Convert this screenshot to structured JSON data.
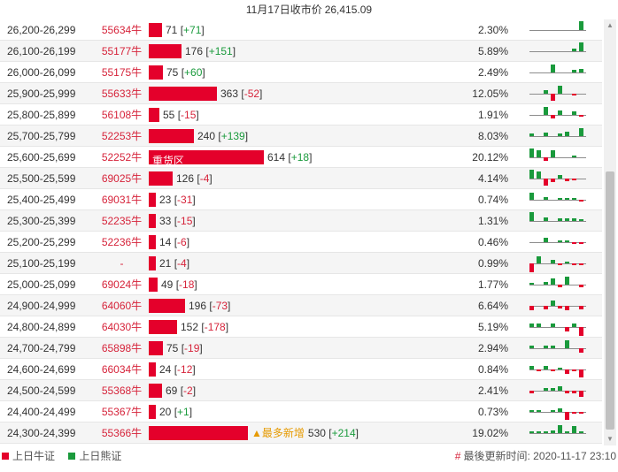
{
  "header": {
    "date_label": "11月17日收市价",
    "price": "26,415.09"
  },
  "colors": {
    "bull": "#e4002b",
    "bear": "#1a9a3c",
    "new_tag": "#e69a00"
  },
  "bar_scale_max": 614,
  "rows": [
    {
      "range": "26,200-26,299",
      "code": "55634牛",
      "value": "71",
      "change": "+71",
      "pct": "2.30%",
      "spark": [
        0,
        0,
        0,
        0,
        0,
        0,
        0,
        -10
      ]
    },
    {
      "range": "26,100-26,199",
      "code": "55177牛",
      "value": "176",
      "change": "+151",
      "pct": "5.89%",
      "spark": [
        0,
        0,
        0,
        0,
        0,
        0,
        -3,
        -10
      ]
    },
    {
      "range": "26,000-26,099",
      "code": "55175牛",
      "value": "75",
      "change": "+60",
      "pct": "2.49%",
      "spark": [
        0,
        0,
        0,
        -9,
        0,
        0,
        -3,
        -4
      ]
    },
    {
      "range": "25,900-25,999",
      "code": "55633牛",
      "value": "363",
      "change": "-52",
      "pct": "12.05%",
      "spark": [
        0,
        0,
        -4,
        8,
        -9,
        0,
        2,
        0
      ]
    },
    {
      "range": "25,800-25,899",
      "code": "56108牛",
      "value": "55",
      "change": "-15",
      "pct": "1.91%",
      "spark": [
        0,
        0,
        -9,
        4,
        -5,
        0,
        -4,
        2
      ]
    },
    {
      "range": "25,700-25,799",
      "code": "52253牛",
      "value": "240",
      "change": "+139",
      "pct": "8.03%",
      "spark": [
        -3,
        0,
        -4,
        0,
        -3,
        -5,
        0,
        -9
      ]
    },
    {
      "range": "25,600-25,699",
      "code": "52252牛",
      "value": "614",
      "change": "+18",
      "pct": "20.12%",
      "tag": "重货区",
      "spark": [
        -10,
        -8,
        4,
        -8,
        0,
        0,
        -2,
        0
      ]
    },
    {
      "range": "25,500-25,599",
      "code": "69025牛",
      "value": "126",
      "change": "-4",
      "pct": "4.14%",
      "spark": [
        -10,
        -8,
        8,
        4,
        -4,
        3,
        2,
        0
      ]
    },
    {
      "range": "25,400-25,499",
      "code": "69031牛",
      "value": "23",
      "change": "-31",
      "pct": "0.74%",
      "spark": [
        -8,
        0,
        -3,
        0,
        -2,
        -2,
        -2,
        2
      ]
    },
    {
      "range": "25,300-25,399",
      "code": "52235牛",
      "value": "33",
      "change": "-15",
      "pct": "1.31%",
      "spark": [
        -10,
        0,
        -4,
        0,
        -3,
        -3,
        -3,
        -2
      ]
    },
    {
      "range": "25,200-25,299",
      "code": "52236牛",
      "value": "14",
      "change": "-6",
      "pct": "0.46%",
      "spark": [
        0,
        0,
        -5,
        0,
        -2,
        -2,
        2,
        2
      ]
    },
    {
      "range": "25,100-25,199",
      "code": "-",
      "value": "21",
      "change": "-4",
      "pct": "0.99%",
      "spark": [
        10,
        -8,
        0,
        -4,
        2,
        -2,
        2,
        2
      ]
    },
    {
      "range": "25,000-25,099",
      "code": "69024牛",
      "value": "49",
      "change": "-18",
      "pct": "1.77%",
      "spark": [
        -2,
        0,
        -3,
        -7,
        3,
        -9,
        0,
        3
      ]
    },
    {
      "range": "24,900-24,999",
      "code": "64060牛",
      "value": "196",
      "change": "-73",
      "pct": "6.64%",
      "spark": [
        5,
        0,
        4,
        -6,
        3,
        5,
        0,
        4
      ]
    },
    {
      "range": "24,800-24,899",
      "code": "64030牛",
      "value": "152",
      "change": "-178",
      "pct": "5.19%",
      "spark": [
        -4,
        -4,
        0,
        -4,
        0,
        5,
        -4,
        10
      ]
    },
    {
      "range": "24,700-24,799",
      "code": "65898牛",
      "value": "75",
      "change": "-19",
      "pct": "2.94%",
      "spark": [
        -3,
        0,
        -3,
        -3,
        0,
        -9,
        0,
        5
      ]
    },
    {
      "range": "24,600-24,699",
      "code": "66034牛",
      "value": "24",
      "change": "-12",
      "pct": "0.84%",
      "spark": [
        -4,
        2,
        -4,
        2,
        -2,
        5,
        2,
        9
      ]
    },
    {
      "range": "24,500-24,599",
      "code": "55368牛",
      "value": "69",
      "change": "-2",
      "pct": "2.41%",
      "spark": [
        3,
        0,
        -3,
        -3,
        -5,
        3,
        3,
        7
      ]
    },
    {
      "range": "24,400-24,499",
      "code": "55367牛",
      "value": "20",
      "change": "+1",
      "pct": "0.73%",
      "spark": [
        -2,
        -2,
        0,
        -2,
        -4,
        9,
        2,
        2
      ]
    },
    {
      "range": "24,300-24,399",
      "code": "55366牛",
      "value": "530",
      "change": "+214",
      "pct": "19.02%",
      "new_tag": "▲最多新增",
      "spark": [
        -2,
        -2,
        -2,
        -3,
        -9,
        -2,
        -8,
        -2
      ]
    }
  ],
  "footer": {
    "legend_bull": "上日牛证",
    "legend_bear": "上日熊证",
    "updated_label": "最後更新时间:",
    "updated_time": "2020-11-17 23:10"
  }
}
